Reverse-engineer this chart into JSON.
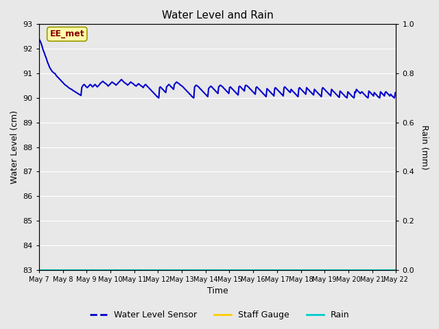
{
  "title": "Water Level and Rain",
  "xlabel": "Time",
  "ylabel_left": "Water Level (cm)",
  "ylabel_right": "Rain (mm)",
  "ylim_left": [
    83.0,
    93.0
  ],
  "ylim_right": [
    0.0,
    1.0
  ],
  "yticks_left": [
    83.0,
    84.0,
    85.0,
    86.0,
    87.0,
    88.0,
    89.0,
    90.0,
    91.0,
    92.0,
    93.0
  ],
  "yticks_right": [
    0.0,
    0.2,
    0.4,
    0.6,
    0.8,
    1.0
  ],
  "background_color": "#e8e8e8",
  "plot_bg_color": "#e8e8e8",
  "line_color": "#0000cc",
  "rain_color": "#00cccc",
  "staff_color": "#ffcc00",
  "annotation_text": "EE_met",
  "annotation_bg": "#ffffaa",
  "annotation_border": "#999900",
  "annotation_text_color": "#880000",
  "legend_labels": [
    "Water Level Sensor",
    "Staff Gauge",
    "Rain"
  ],
  "legend_colors": [
    "#0000cc",
    "#ffcc00",
    "#00cccc"
  ],
  "water_level_data": [
    92.4,
    92.35,
    92.28,
    92.2,
    92.1,
    91.98,
    91.9,
    91.82,
    91.72,
    91.65,
    91.55,
    91.45,
    91.38,
    91.3,
    91.22,
    91.18,
    91.12,
    91.08,
    91.05,
    91.02,
    91.0,
    90.98,
    90.92,
    90.88,
    90.85,
    90.82,
    90.78,
    90.75,
    90.72,
    90.68,
    90.65,
    90.62,
    90.58,
    90.55,
    90.52,
    90.5,
    90.48,
    90.45,
    90.42,
    90.4,
    90.38,
    90.36,
    90.35,
    90.32,
    90.3,
    90.28,
    90.26,
    90.24,
    90.22,
    90.2,
    90.18,
    90.16,
    90.14,
    90.12,
    90.1,
    90.42,
    90.48,
    90.52,
    90.55,
    90.52,
    90.48,
    90.45,
    90.42,
    90.45,
    90.48,
    90.52,
    90.55,
    90.52,
    90.48,
    90.45,
    90.48,
    90.52,
    90.55,
    90.52,
    90.48,
    90.45,
    90.48,
    90.52,
    90.55,
    90.6,
    90.62,
    90.65,
    90.68,
    90.65,
    90.62,
    90.6,
    90.58,
    90.55,
    90.52,
    90.48,
    90.52,
    90.55,
    90.58,
    90.62,
    90.65,
    90.62,
    90.6,
    90.58,
    90.55,
    90.52,
    90.55,
    90.58,
    90.62,
    90.65,
    90.68,
    90.72,
    90.75,
    90.72,
    90.68,
    90.65,
    90.62,
    90.6,
    90.58,
    90.55,
    90.52,
    90.55,
    90.58,
    90.62,
    90.65,
    90.62,
    90.6,
    90.58,
    90.55,
    90.52,
    90.5,
    90.48,
    90.52,
    90.55,
    90.58,
    90.55,
    90.52,
    90.5,
    90.48,
    90.45,
    90.42,
    90.48,
    90.52,
    90.55,
    90.52,
    90.48,
    90.45,
    90.42,
    90.38,
    90.35,
    90.32,
    90.28,
    90.25,
    90.22,
    90.18,
    90.15,
    90.12,
    90.08,
    90.05,
    90.02,
    90.0,
    90.42,
    90.45,
    90.42,
    90.38,
    90.35,
    90.32,
    90.28,
    90.25,
    90.22,
    90.45,
    90.48,
    90.52,
    90.55,
    90.52,
    90.48,
    90.45,
    90.42,
    90.38,
    90.35,
    90.55,
    90.58,
    90.62,
    90.65,
    90.62,
    90.6,
    90.58,
    90.55,
    90.52,
    90.5,
    90.48,
    90.45,
    90.42,
    90.38,
    90.35,
    90.32,
    90.28,
    90.25,
    90.22,
    90.18,
    90.15,
    90.12,
    90.08,
    90.05,
    90.02,
    90.0,
    90.45,
    90.48,
    90.52,
    90.5,
    90.48,
    90.45,
    90.42,
    90.38,
    90.35,
    90.32,
    90.28,
    90.25,
    90.22,
    90.18,
    90.15,
    90.12,
    90.08,
    90.05,
    90.38,
    90.42,
    90.45,
    90.48,
    90.45,
    90.42,
    90.38,
    90.35,
    90.32,
    90.28,
    90.25,
    90.22,
    90.18,
    90.45,
    90.48,
    90.52,
    90.5,
    90.48,
    90.45,
    90.42,
    90.38,
    90.35,
    90.32,
    90.28,
    90.25,
    90.22,
    90.18,
    90.42,
    90.45,
    90.42,
    90.38,
    90.35,
    90.32,
    90.28,
    90.25,
    90.22,
    90.18,
    90.15,
    90.12,
    90.45,
    90.48,
    90.45,
    90.42,
    90.38,
    90.35,
    90.32,
    90.28,
    90.48,
    90.52,
    90.5,
    90.48,
    90.45,
    90.42,
    90.38,
    90.35,
    90.32,
    90.28,
    90.25,
    90.22,
    90.18,
    90.15,
    90.42,
    90.45,
    90.42,
    90.38,
    90.35,
    90.32,
    90.28,
    90.25,
    90.22,
    90.18,
    90.15,
    90.12,
    90.08,
    90.05,
    90.38,
    90.35,
    90.32,
    90.28,
    90.25,
    90.22,
    90.18,
    90.15,
    90.12,
    90.08,
    90.38,
    90.42,
    90.38,
    90.35,
    90.32,
    90.28,
    90.25,
    90.22,
    90.18,
    90.15,
    90.12,
    90.08,
    90.42,
    90.45,
    90.42,
    90.38,
    90.35,
    90.32,
    90.28,
    90.25,
    90.22,
    90.35,
    90.32,
    90.28,
    90.25,
    90.22,
    90.18,
    90.15,
    90.12,
    90.08,
    90.05,
    90.38,
    90.42,
    90.38,
    90.35,
    90.32,
    90.28,
    90.25,
    90.22,
    90.18,
    90.15,
    90.42,
    90.38,
    90.35,
    90.32,
    90.28,
    90.25,
    90.22,
    90.18,
    90.15,
    90.12,
    90.35,
    90.32,
    90.28,
    90.25,
    90.22,
    90.18,
    90.15,
    90.12,
    90.08,
    90.05,
    90.38,
    90.42,
    90.38,
    90.35,
    90.32,
    90.28,
    90.25,
    90.22,
    90.18,
    90.15,
    90.12,
    90.08,
    90.35,
    90.32,
    90.28,
    90.25,
    90.22,
    90.18,
    90.15,
    90.12,
    90.08,
    90.05,
    90.02,
    90.28,
    90.25,
    90.22,
    90.18,
    90.15,
    90.12,
    90.08,
    90.05,
    90.02,
    90.0,
    90.25,
    90.22,
    90.18,
    90.15,
    90.12,
    90.08,
    90.05,
    90.02,
    90.0,
    90.25,
    90.22,
    90.35,
    90.32,
    90.28,
    90.25,
    90.22,
    90.18,
    90.22,
    90.25,
    90.22,
    90.18,
    90.15,
    90.12,
    90.08,
    90.05,
    90.02,
    90.0,
    90.28,
    90.25,
    90.22,
    90.18,
    90.15,
    90.12,
    90.08,
    90.22,
    90.18,
    90.15,
    90.12,
    90.08,
    90.05,
    90.02,
    90.0,
    90.25,
    90.22,
    90.18,
    90.15,
    90.12,
    90.08,
    90.22,
    90.25,
    90.22,
    90.18,
    90.15,
    90.12,
    90.08,
    90.15,
    90.12,
    90.08,
    90.05,
    90.02,
    90.0,
    90.22,
    90.18
  ],
  "xtick_labels": [
    "May 7",
    "May 8",
    "May 9",
    "May 10",
    "May 11",
    "May 12",
    "May 13",
    "May 14",
    "May 15",
    "May 16",
    "May 17",
    "May 18",
    "May 19",
    "May 20",
    "May 21",
    "May 22"
  ],
  "num_days": 16
}
